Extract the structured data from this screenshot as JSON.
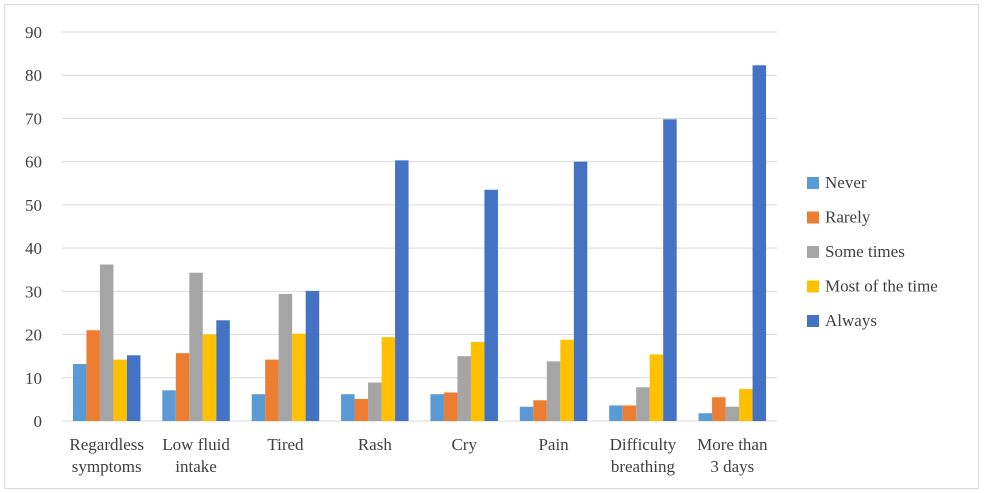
{
  "chart_data": {
    "type": "bar",
    "title": "",
    "xlabel": "",
    "ylabel": "",
    "ylim": [
      0,
      90
    ],
    "yticks": [
      0,
      10,
      20,
      30,
      40,
      50,
      60,
      70,
      80,
      90
    ],
    "grid": true,
    "legend_position": "right",
    "categories": [
      [
        "Regardless",
        "symptoms"
      ],
      [
        "Low fluid",
        "intake"
      ],
      [
        "Tired"
      ],
      [
        "Rash"
      ],
      [
        "Cry"
      ],
      [
        "Pain"
      ],
      [
        "Difficulty",
        "breathing"
      ],
      [
        "More than",
        "3 days"
      ]
    ],
    "series": [
      {
        "name": "Never",
        "color": "#5b9bd5",
        "values": [
          13.2,
          7.1,
          6.2,
          6.2,
          6.2,
          3.3,
          3.6,
          1.8
        ]
      },
      {
        "name": "Rarely",
        "color": "#ed7d31",
        "values": [
          21.0,
          15.7,
          14.2,
          5.1,
          6.6,
          4.8,
          3.6,
          5.5
        ]
      },
      {
        "name": "Some times",
        "color": "#a5a5a5",
        "values": [
          36.2,
          34.3,
          29.4,
          8.9,
          15.0,
          13.8,
          7.8,
          3.3
        ]
      },
      {
        "name": "Most of the time",
        "color": "#ffc000",
        "values": [
          14.2,
          20.0,
          20.2,
          19.4,
          18.3,
          18.8,
          15.4,
          7.4
        ]
      },
      {
        "name": "Always",
        "color": "#4472c4",
        "values": [
          15.2,
          23.3,
          30.1,
          60.3,
          53.5,
          60.0,
          69.8,
          82.3
        ]
      }
    ]
  }
}
